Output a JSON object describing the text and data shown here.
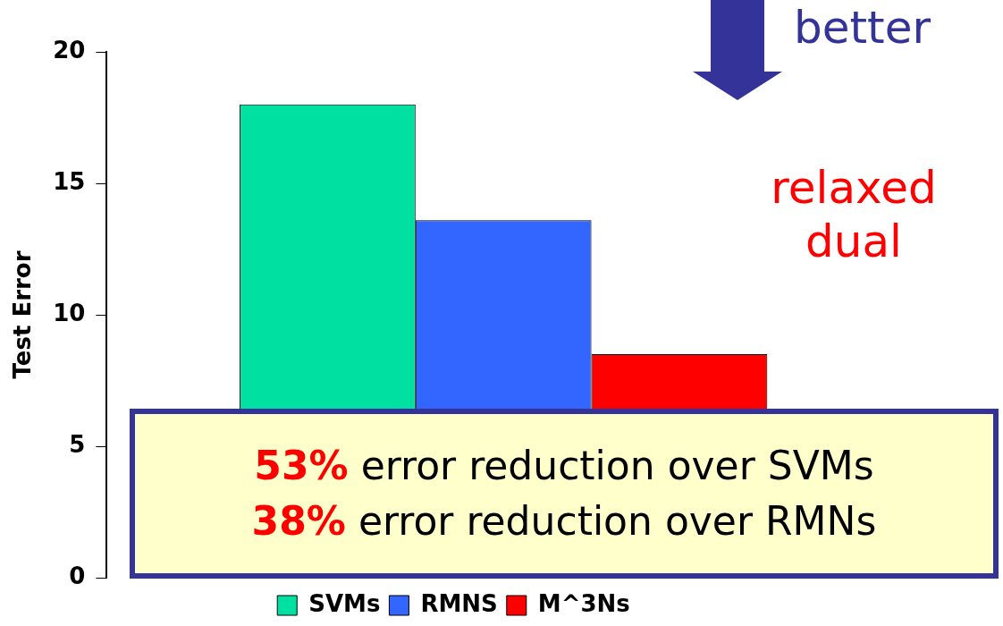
{
  "chart_data": {
    "type": "bar",
    "ylabel": "Test Error",
    "categories": [
      null
    ],
    "series": [
      {
        "name": "SVMs",
        "color": "#00e0a0",
        "values": [
          18
        ]
      },
      {
        "name": "RMNS",
        "color": "#3366ff",
        "values": [
          13.6
        ]
      },
      {
        "name": "M^3Ns",
        "color": "#ff0000",
        "values": [
          8.5
        ]
      }
    ],
    "ylim": [
      0,
      20
    ],
    "yticks": [
      0,
      5,
      10,
      15,
      20
    ],
    "grid": false,
    "legend": "bottom",
    "annotations": [
      "better",
      "relaxed dual",
      "53% error reduction over SVMs",
      "38% error reduction over RMNs"
    ]
  }
}
